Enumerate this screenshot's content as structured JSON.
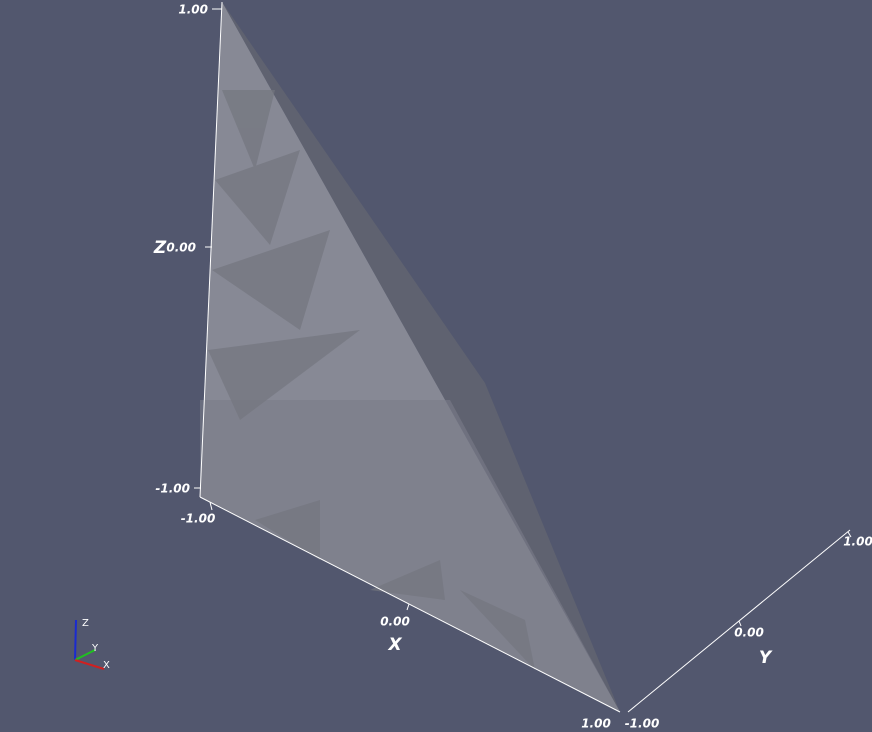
{
  "axes": {
    "z": {
      "title": "Z",
      "ticks": [
        "1.00",
        "0.00",
        "-1.00"
      ]
    },
    "x": {
      "title": "X",
      "ticks": [
        "-1.00",
        "0.00",
        "1.00"
      ]
    },
    "y": {
      "title": "Y",
      "ticks": [
        "-1.00",
        "0.00",
        "1.00"
      ]
    }
  },
  "orientation_widget": {
    "labels": [
      "Z",
      "Y",
      "X"
    ]
  }
}
